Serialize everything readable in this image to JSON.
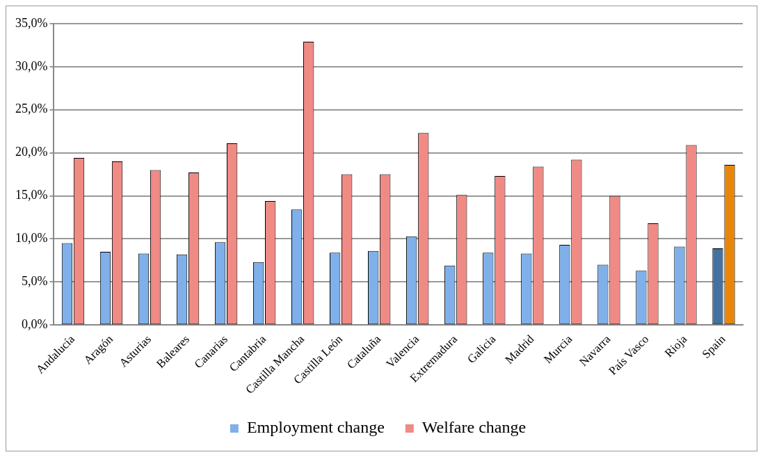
{
  "chart_data": {
    "type": "bar",
    "categories": [
      "Andalucía",
      "Aragón",
      "Asturias",
      "Baleares",
      "Canarias",
      "Cantabria",
      "Castilla Mancha",
      "Castilla León",
      "Cataluña",
      "Valencia",
      "Extremadura",
      "Galicia",
      "Madrid",
      "Murcia",
      "Navarra",
      "País Vasco",
      "Rioja",
      "Spain"
    ],
    "series": [
      {
        "name": "Employment change",
        "color": "#7fb0ea",
        "colors": [
          "#7fb0ea",
          "#7fb0ea",
          "#7fb0ea",
          "#7fb0ea",
          "#7fb0ea",
          "#7fb0ea",
          "#7fb0ea",
          "#7fb0ea",
          "#7fb0ea",
          "#7fb0ea",
          "#7fb0ea",
          "#7fb0ea",
          "#7fb0ea",
          "#7fb0ea",
          "#7fb0ea",
          "#7fb0ea",
          "#7fb0ea",
          "#44719f"
        ],
        "values": [
          9.5,
          8.5,
          8.3,
          8.2,
          9.6,
          7.3,
          13.4,
          8.4,
          8.6,
          10.3,
          6.9,
          8.4,
          8.3,
          9.3,
          7.0,
          6.3,
          9.1,
          8.9
        ]
      },
      {
        "name": "Welfare change",
        "color": "#f08a85",
        "colors": [
          "#f08a85",
          "#f08a85",
          "#f08a85",
          "#f08a85",
          "#f08a85",
          "#f08a85",
          "#f08a85",
          "#f08a85",
          "#f08a85",
          "#f08a85",
          "#f08a85",
          "#f08a85",
          "#f08a85",
          "#f08a85",
          "#f08a85",
          "#f08a85",
          "#f08a85",
          "#e8860a"
        ],
        "values": [
          19.4,
          19.0,
          18.0,
          17.7,
          21.1,
          14.4,
          32.9,
          17.5,
          17.5,
          22.3,
          15.1,
          17.3,
          18.4,
          19.2,
          15.0,
          11.8,
          20.9,
          18.6
        ]
      }
    ],
    "ylim": [
      0,
      35
    ],
    "yticks": [
      {
        "value": 0,
        "label": "0,0%"
      },
      {
        "value": 5,
        "label": "5,0%"
      },
      {
        "value": 10,
        "label": "10,0%"
      },
      {
        "value": 15,
        "label": "15,0%"
      },
      {
        "value": 20,
        "label": "20,0%"
      },
      {
        "value": 25,
        "label": "25,0%"
      },
      {
        "value": 30,
        "label": "30,0%"
      },
      {
        "value": 35,
        "label": "35,0%"
      }
    ],
    "grid": "y",
    "legend": "bottom"
  }
}
